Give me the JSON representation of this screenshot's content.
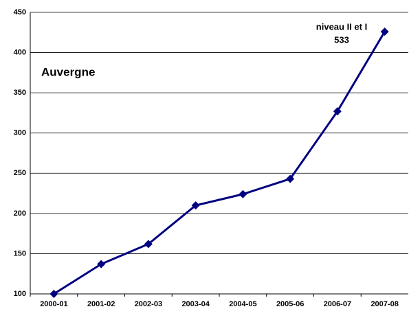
{
  "chart_data": {
    "type": "line",
    "label": "Auvergne",
    "annotations": [
      "niveau II et I",
      "533"
    ],
    "categories": [
      "2000-01",
      "2001-02",
      "2002-03",
      "2003-04",
      "2004-05",
      "2005-06",
      "2006-07",
      "2007-08"
    ],
    "series": [
      {
        "name": "Auvergne",
        "color": "#000080",
        "values": [
          100,
          137,
          162,
          210,
          224,
          243,
          327,
          426
        ]
      }
    ],
    "ylim": [
      100,
      450
    ],
    "yticks": [
      100,
      150,
      200,
      250,
      300,
      350,
      400,
      450
    ],
    "grid": true
  }
}
